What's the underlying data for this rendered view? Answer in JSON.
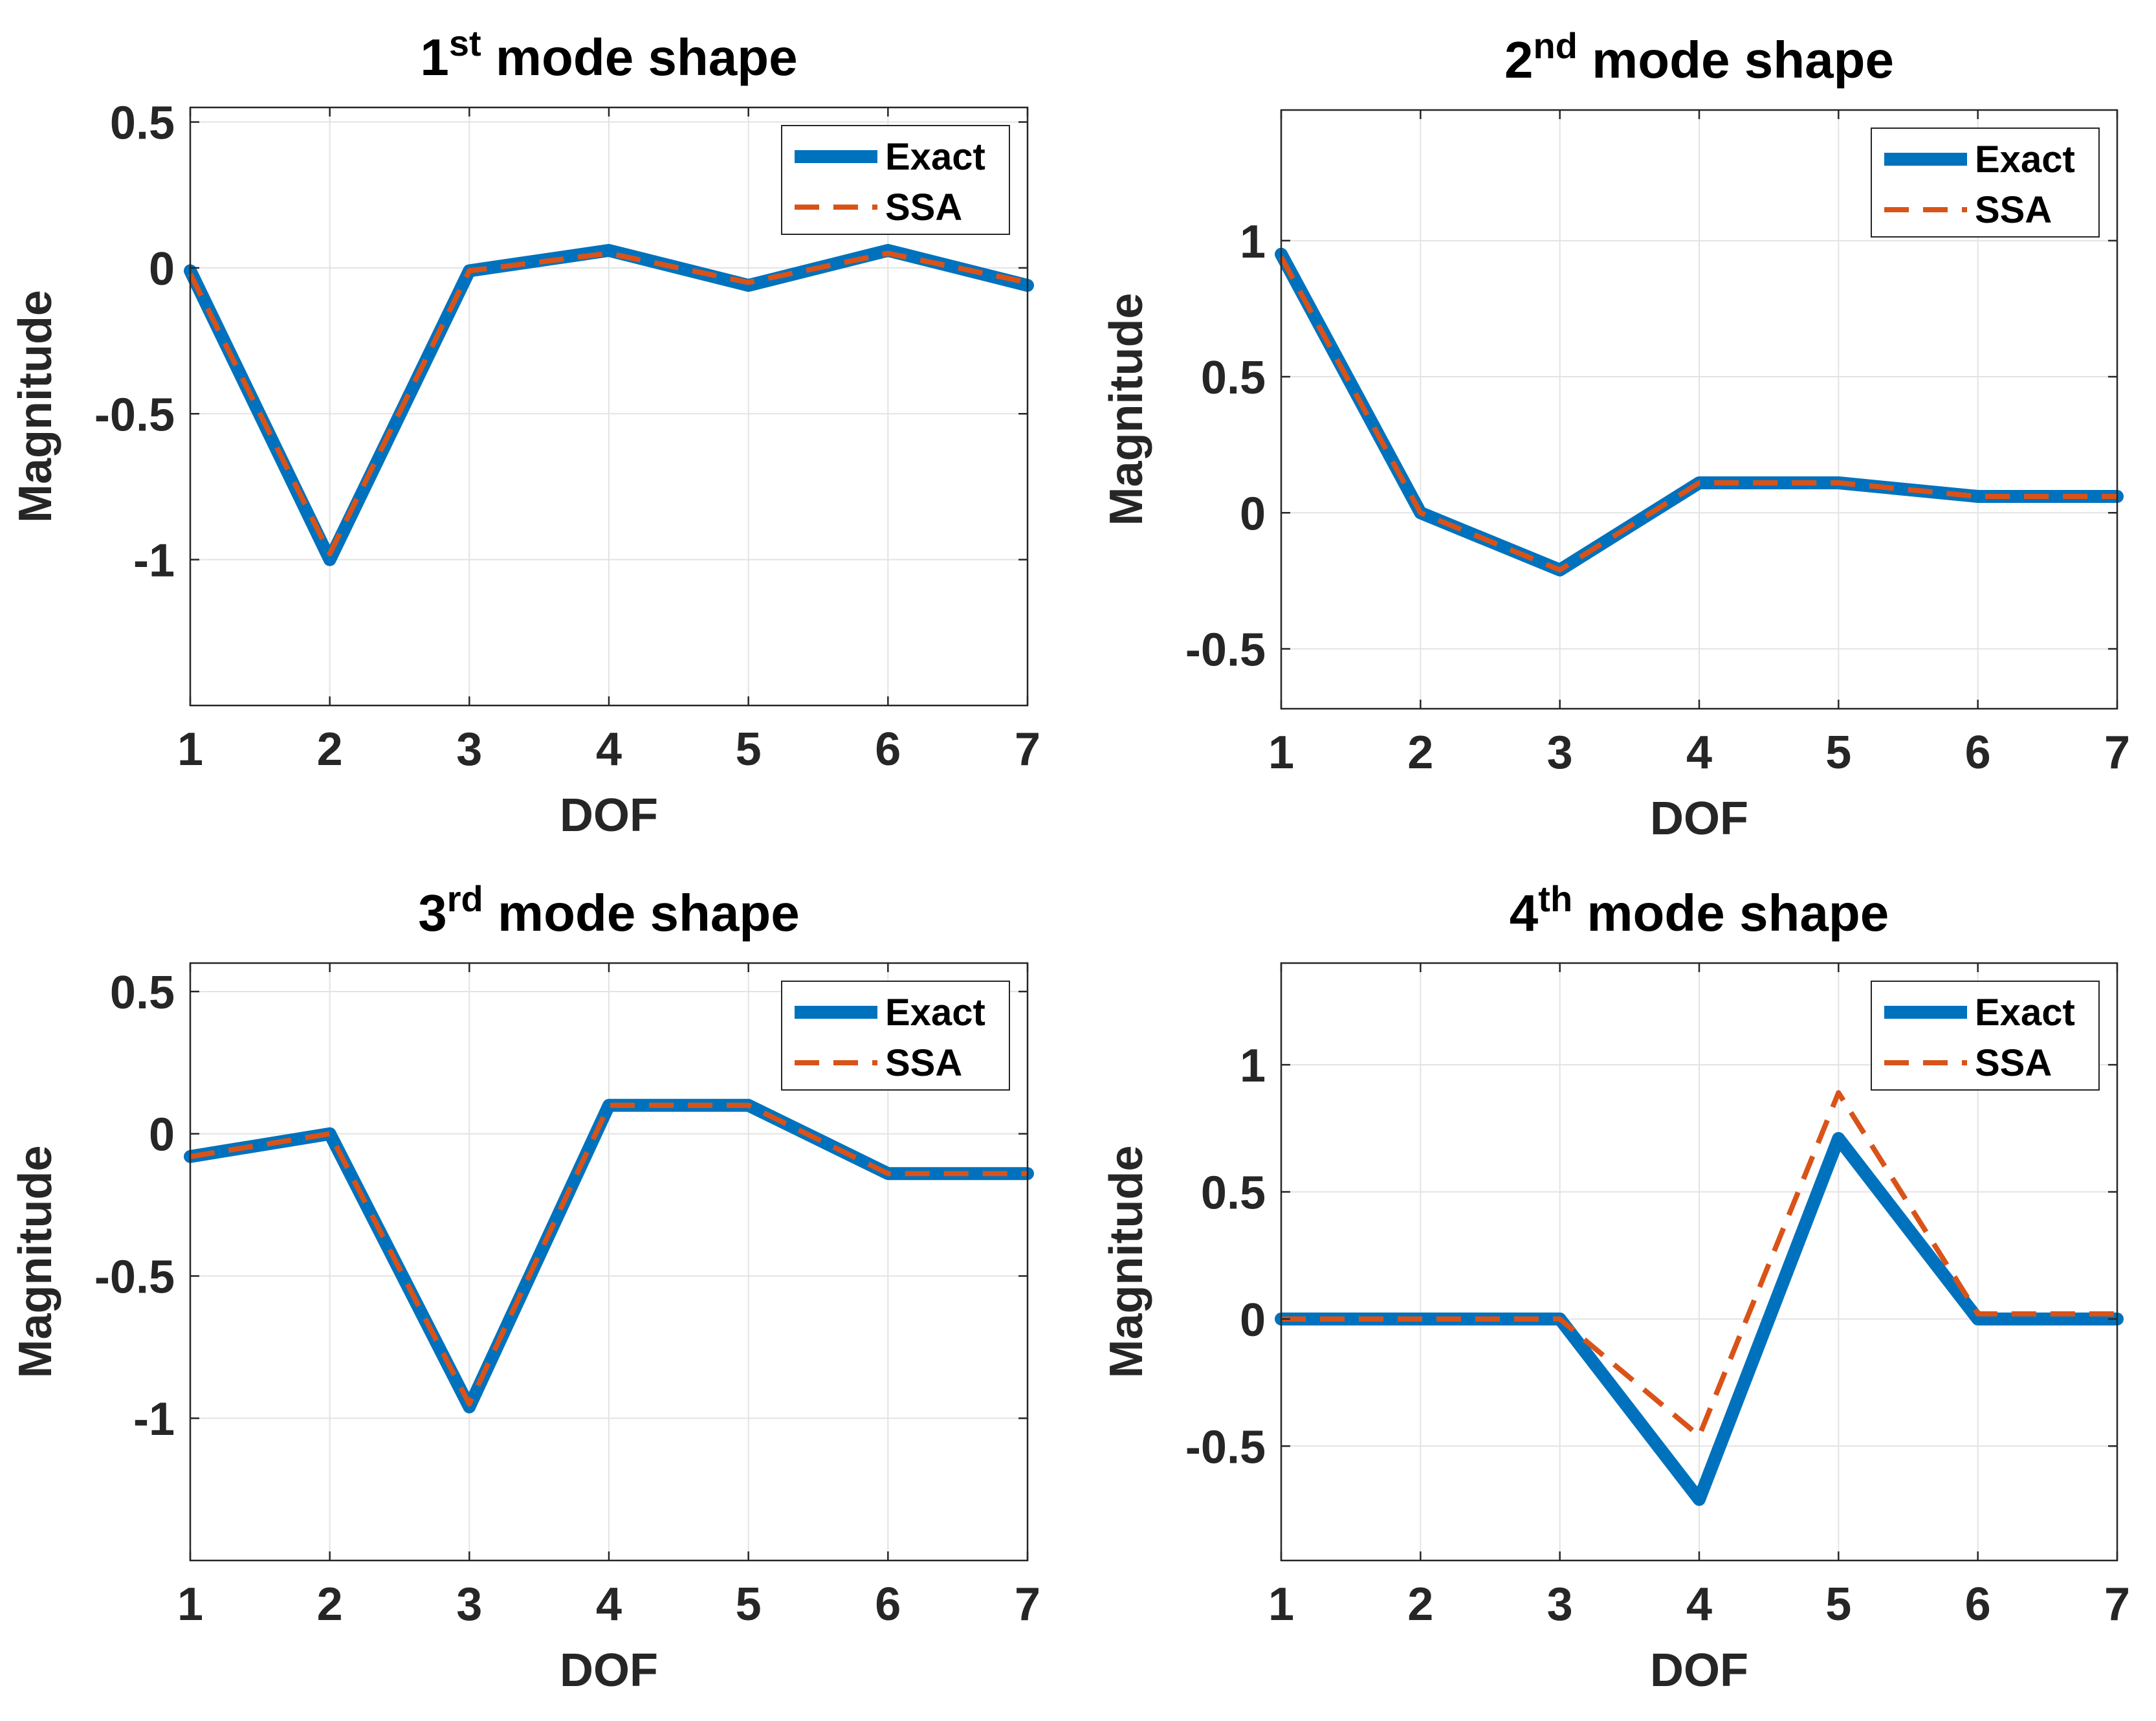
{
  "figure": {
    "colors": {
      "exact": "#0072BD",
      "ssa": "#D95319",
      "grid": "#E3E3E3",
      "axes": "#262626"
    }
  },
  "chart_data": [
    {
      "type": "line",
      "title": {
        "prefix": "1",
        "superscript": "st",
        "suffix": " mode shape"
      },
      "xlabel": "DOF",
      "ylabel": "Magnitude",
      "xlim": [
        1,
        7
      ],
      "ylim": [
        -1.5,
        0.55
      ],
      "xticks": [
        1,
        2,
        3,
        4,
        5,
        6,
        7
      ],
      "xtick_labels": [
        "1",
        "2",
        "3",
        "4",
        "5",
        "6",
        "7"
      ],
      "yticks": [
        -1,
        -0.5,
        0,
        0.5
      ],
      "ytick_labels": [
        "-1",
        "-0.5",
        "0",
        "0.5"
      ],
      "grid": true,
      "legend": {
        "position": "top-right",
        "entries": [
          "Exact",
          "SSA"
        ]
      },
      "x": [
        1,
        2,
        3,
        4,
        5,
        6,
        7
      ],
      "series": [
        {
          "name": "Exact",
          "style": "solid",
          "values": [
            -0.01,
            -1.0,
            -0.01,
            0.06,
            -0.06,
            0.06,
            -0.06
          ]
        },
        {
          "name": "SSA",
          "style": "dashed",
          "values": [
            -0.02,
            -0.98,
            -0.01,
            0.05,
            -0.05,
            0.05,
            -0.05
          ]
        }
      ]
    },
    {
      "type": "line",
      "title": {
        "prefix": "2",
        "superscript": "nd",
        "suffix": " mode shape"
      },
      "xlabel": "DOF",
      "ylabel": "Magnitude",
      "xlim": [
        1,
        7
      ],
      "ylim": [
        -0.72,
        1.48
      ],
      "xticks": [
        1,
        2,
        3,
        4,
        5,
        6,
        7
      ],
      "xtick_labels": [
        "1",
        "2",
        "3",
        "4",
        "5",
        "6",
        "7"
      ],
      "yticks": [
        -0.5,
        0,
        0.5,
        1
      ],
      "ytick_labels": [
        "-0.5",
        "0",
        "0.5",
        "1"
      ],
      "grid": true,
      "legend": {
        "position": "top-right",
        "entries": [
          "Exact",
          "SSA"
        ]
      },
      "x": [
        1,
        2,
        3,
        4,
        5,
        6,
        7
      ],
      "series": [
        {
          "name": "Exact",
          "style": "solid",
          "values": [
            0.95,
            0.0,
            -0.21,
            0.11,
            0.11,
            0.06,
            0.06
          ]
        },
        {
          "name": "SSA",
          "style": "dashed",
          "values": [
            0.94,
            0.0,
            -0.21,
            0.11,
            0.11,
            0.06,
            0.06
          ]
        }
      ]
    },
    {
      "type": "line",
      "title": {
        "prefix": "3",
        "superscript": "rd",
        "suffix": " mode shape"
      },
      "xlabel": "DOF",
      "ylabel": "Magnitude",
      "xlim": [
        1,
        7
      ],
      "ylim": [
        -1.5,
        0.6
      ],
      "xticks": [
        1,
        2,
        3,
        4,
        5,
        6,
        7
      ],
      "xtick_labels": [
        "1",
        "2",
        "3",
        "4",
        "5",
        "6",
        "7"
      ],
      "yticks": [
        -1,
        -0.5,
        0,
        0.5
      ],
      "ytick_labels": [
        "-1",
        "-0.5",
        "0",
        "0.5"
      ],
      "grid": true,
      "legend": {
        "position": "top-right",
        "entries": [
          "Exact",
          "SSA"
        ]
      },
      "x": [
        1,
        2,
        3,
        4,
        5,
        6,
        7
      ],
      "series": [
        {
          "name": "Exact",
          "style": "solid",
          "values": [
            -0.08,
            0.0,
            -0.96,
            0.1,
            0.1,
            -0.14,
            -0.14
          ]
        },
        {
          "name": "SSA",
          "style": "dashed",
          "values": [
            -0.08,
            0.0,
            -0.95,
            0.1,
            0.1,
            -0.14,
            -0.14
          ]
        }
      ]
    },
    {
      "type": "line",
      "title": {
        "prefix": "4",
        "superscript": "th",
        "suffix": " mode shape"
      },
      "xlabel": "DOF",
      "ylabel": "Magnitude",
      "xlim": [
        1,
        7
      ],
      "ylim": [
        -0.95,
        1.4
      ],
      "xticks": [
        1,
        2,
        3,
        4,
        5,
        6,
        7
      ],
      "xtick_labels": [
        "1",
        "2",
        "3",
        "4",
        "5",
        "6",
        "7"
      ],
      "yticks": [
        -0.5,
        0,
        0.5,
        1
      ],
      "ytick_labels": [
        "-0.5",
        "0",
        "0.5",
        "1"
      ],
      "grid": true,
      "legend": {
        "position": "top-right",
        "entries": [
          "Exact",
          "SSA"
        ]
      },
      "x": [
        1,
        2,
        3,
        4,
        5,
        6,
        7
      ],
      "series": [
        {
          "name": "Exact",
          "style": "solid",
          "values": [
            0.0,
            0.0,
            0.0,
            -0.71,
            0.71,
            0.0,
            0.0
          ]
        },
        {
          "name": "SSA",
          "style": "dashed",
          "values": [
            0.0,
            0.0,
            0.0,
            -0.46,
            0.89,
            0.02,
            0.02
          ]
        }
      ]
    }
  ]
}
